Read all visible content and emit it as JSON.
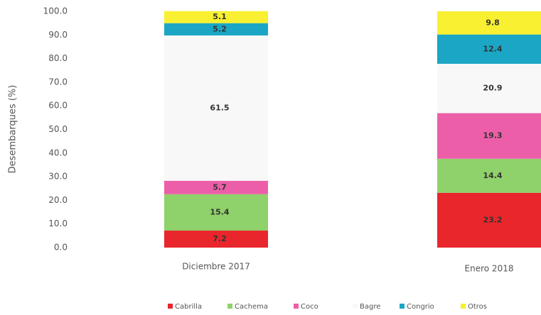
{
  "chart_data": {
    "type": "stacked_bar",
    "y_label": "Desembarques (%)",
    "categories": [
      "Diciembre 2017",
      "Enero 2018"
    ],
    "series": [
      {
        "name": "Cabrilla",
        "color": "#e8262c",
        "values": [
          7.2,
          23.2
        ]
      },
      {
        "name": "Cachema",
        "color": "#8fd16a",
        "values": [
          15.4,
          14.4
        ]
      },
      {
        "name": "Coco",
        "color": "#ec5fa8",
        "values": [
          5.7,
          19.3
        ]
      },
      {
        "name": "Bagre",
        "color": "#f8f8f8",
        "values": [
          61.5,
          20.9
        ]
      },
      {
        "name": "Congrio",
        "color": "#1aa6c4",
        "values": [
          5.2,
          12.4
        ]
      },
      {
        "name": "Otros",
        "color": "#f8f030",
        "values": [
          5.1,
          9.8
        ]
      }
    ],
    "ylim": [
      0,
      100
    ],
    "yticks": [
      {
        "value": 0,
        "label": "0.0"
      },
      {
        "value": 10,
        "label": "10.0"
      },
      {
        "value": 20,
        "label": "20.0"
      },
      {
        "value": 30,
        "label": "30.0"
      },
      {
        "value": 40,
        "label": "40.0"
      },
      {
        "value": 50,
        "label": "50.0"
      },
      {
        "value": 60,
        "label": "60.0"
      },
      {
        "value": 70,
        "label": "70.0"
      },
      {
        "value": 80,
        "label": "80.0"
      },
      {
        "value": 90,
        "label": "90.0"
      },
      {
        "value": 100,
        "label": "100.0"
      }
    ],
    "legend": "bottom"
  }
}
